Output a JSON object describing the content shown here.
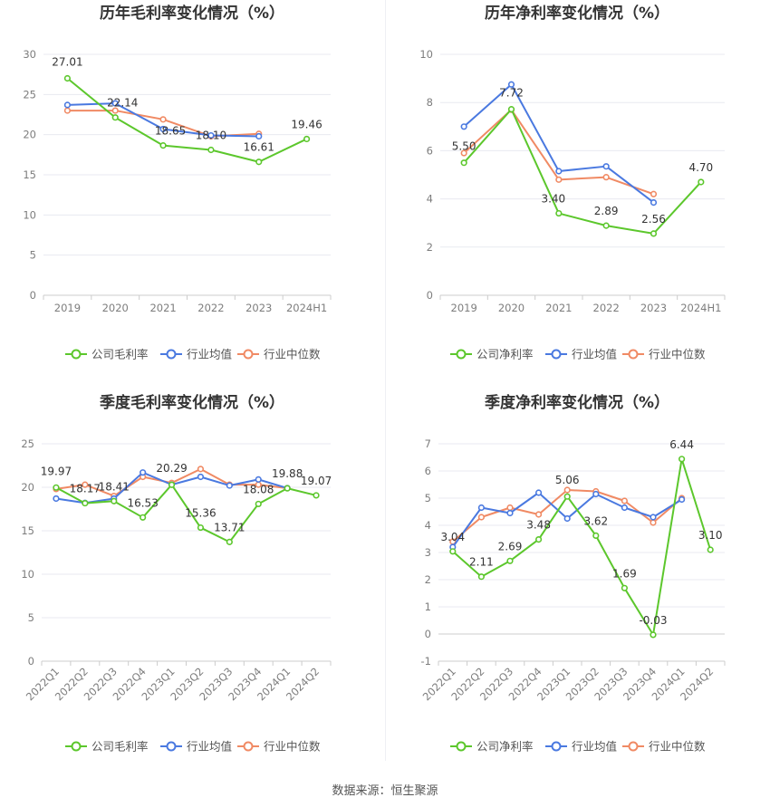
{
  "source_text": "数据来源：恒生聚源",
  "colors": {
    "company": "#5cc72c",
    "avg": "#4a79e0",
    "median": "#f08a64",
    "grid": "#e8eaf0",
    "axis": "#cccccc"
  },
  "chart_data": [
    {
      "type": "line",
      "title": "历年毛利率变化情况（%）",
      "categories": [
        "2019",
        "2020",
        "2021",
        "2022",
        "2023",
        "2024H1"
      ],
      "ylim": [
        0,
        30
      ],
      "yticks": [
        0,
        5,
        10,
        15,
        20,
        25,
        30
      ],
      "grid": true,
      "legend_placement": "bottom",
      "series": [
        {
          "name": "公司毛利率",
          "values": [
            27.01,
            22.14,
            18.65,
            18.1,
            16.61,
            19.46
          ],
          "labels": [
            "27.01",
            "22.14",
            "18.65",
            "18.10",
            "16.61",
            "19.46"
          ]
        },
        {
          "name": "行业均值",
          "values": [
            23.7,
            23.9,
            20.7,
            19.9,
            19.8,
            null
          ]
        },
        {
          "name": "行业中位数",
          "values": [
            23.0,
            23.0,
            21.9,
            19.8,
            20.1,
            null
          ]
        }
      ]
    },
    {
      "type": "line",
      "title": "历年净利率变化情况（%）",
      "categories": [
        "2019",
        "2020",
        "2021",
        "2022",
        "2023",
        "2024H1"
      ],
      "ylim": [
        0,
        10
      ],
      "yticks": [
        0,
        2,
        4,
        6,
        8,
        10
      ],
      "grid": true,
      "legend_placement": "bottom",
      "series": [
        {
          "name": "公司净利率",
          "values": [
            5.5,
            7.72,
            3.4,
            2.89,
            2.56,
            4.7
          ],
          "labels": [
            "5.50",
            "7.72",
            "3.40",
            "2.89",
            "2.56",
            "4.70"
          ]
        },
        {
          "name": "行业均值",
          "values": [
            7.0,
            8.75,
            5.15,
            5.35,
            3.85,
            null
          ]
        },
        {
          "name": "行业中位数",
          "values": [
            5.9,
            7.7,
            4.8,
            4.9,
            4.2,
            null
          ]
        }
      ]
    },
    {
      "type": "line",
      "title": "季度毛利率变化情况（%）",
      "categories": [
        "2022Q1",
        "2022Q2",
        "2022Q3",
        "2022Q4",
        "2023Q1",
        "2023Q2",
        "2023Q3",
        "2023Q4",
        "2024Q1",
        "2024Q2"
      ],
      "ylim": [
        0,
        25
      ],
      "yticks": [
        0,
        5,
        10,
        15,
        20,
        25
      ],
      "grid": true,
      "legend_placement": "bottom",
      "series": [
        {
          "name": "公司毛利率",
          "values": [
            19.97,
            18.17,
            18.41,
            16.53,
            20.29,
            15.36,
            13.71,
            18.08,
            19.88,
            19.07
          ],
          "labels": [
            "19.97",
            "18.17",
            "18.41",
            "16.53",
            "20.29",
            "15.36",
            "13.71",
            "18.08",
            "19.88",
            "19.07"
          ]
        },
        {
          "name": "行业均值",
          "values": [
            18.7,
            18.2,
            18.7,
            21.7,
            20.3,
            21.2,
            20.2,
            20.9,
            19.9,
            null
          ]
        },
        {
          "name": "行业中位数",
          "values": [
            19.8,
            20.3,
            19.0,
            21.2,
            20.5,
            22.1,
            20.3,
            20.3,
            19.9,
            null
          ]
        }
      ]
    },
    {
      "type": "line",
      "title": "季度净利率变化情况（%）",
      "categories": [
        "2022Q1",
        "2022Q2",
        "2022Q3",
        "2022Q4",
        "2023Q1",
        "2023Q2",
        "2023Q3",
        "2023Q4",
        "2024Q1",
        "2024Q2"
      ],
      "ylim": [
        -1,
        7
      ],
      "yticks": [
        -1,
        0,
        1,
        2,
        3,
        4,
        5,
        6,
        7
      ],
      "grid": true,
      "legend_placement": "bottom",
      "series": [
        {
          "name": "公司净利率",
          "values": [
            3.04,
            2.11,
            2.69,
            3.48,
            5.06,
            3.62,
            1.69,
            -0.03,
            6.44,
            3.1
          ],
          "labels": [
            "3.04",
            "2.11",
            "2.69",
            "3.48",
            "5.06",
            "3.62",
            "1.69",
            "-0.03",
            "6.44",
            "3.10"
          ]
        },
        {
          "name": "行业均值",
          "values": [
            3.2,
            4.65,
            4.45,
            5.2,
            4.25,
            5.15,
            4.65,
            4.3,
            4.95,
            null
          ]
        },
        {
          "name": "行业中位数",
          "values": [
            3.4,
            4.3,
            4.65,
            4.4,
            5.3,
            5.25,
            4.9,
            4.1,
            5.0,
            null
          ]
        }
      ]
    }
  ]
}
